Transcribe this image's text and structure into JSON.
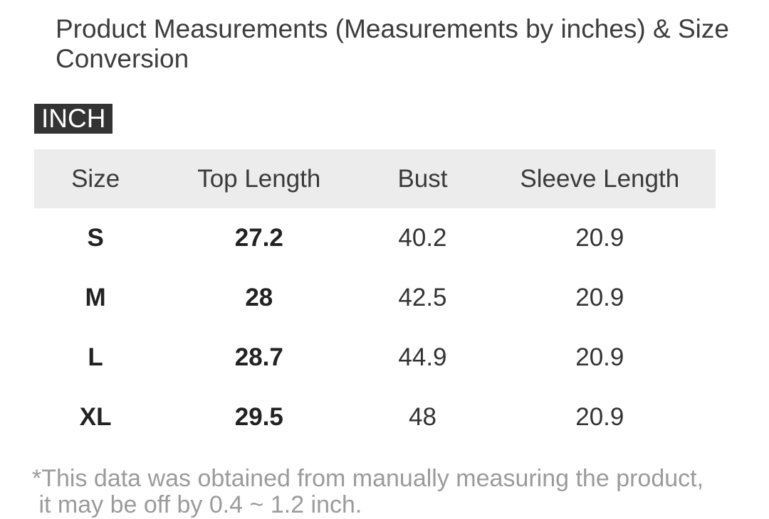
{
  "header": {
    "title": "Product Measurements (Measurements by inches) & Size Conversion"
  },
  "unit_badge": {
    "label": "INCH"
  },
  "table": {
    "columns": [
      "Size",
      "Top Length",
      "Bust",
      "Sleeve Length"
    ],
    "column_keys": [
      "size",
      "top_length",
      "bust",
      "sleeve_length"
    ],
    "rows": [
      {
        "size": "S",
        "top_length": "27.2",
        "bust": "40.2",
        "sleeve_length": "20.9"
      },
      {
        "size": "M",
        "top_length": "28",
        "bust": "42.5",
        "sleeve_length": "20.9"
      },
      {
        "size": "L",
        "top_length": "28.7",
        "bust": "44.9",
        "sleeve_length": "20.9"
      },
      {
        "size": "XL",
        "top_length": "29.5",
        "bust": "48",
        "sleeve_length": "20.9"
      }
    ]
  },
  "footnote": {
    "line1": "*This data was obtained from manually measuring the product,",
    "line2": " it may be off by 0.4 ~ 1.2 inch."
  },
  "colors": {
    "badge_bg": "#333333",
    "badge_text": "#ffffff",
    "header_row_bg": "#ececec",
    "title_text": "#3d3d3d",
    "bold_cell_text": "#222222",
    "regular_cell_text": "#333333",
    "footnote_text": "#9b9b9b"
  }
}
